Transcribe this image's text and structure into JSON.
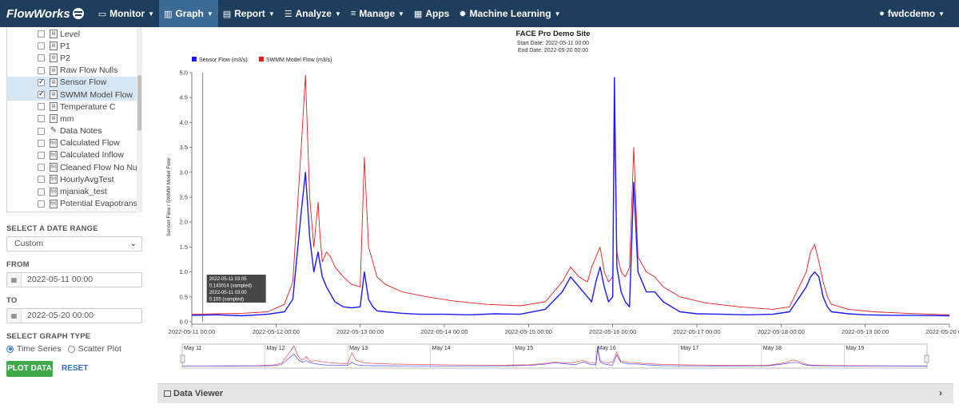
{
  "nav": {
    "brand": "FlowWorks",
    "items": [
      {
        "label": "Monitor",
        "icon": "monitor-icon"
      },
      {
        "label": "Graph",
        "icon": "bar-chart-icon",
        "active": true
      },
      {
        "label": "Report",
        "icon": "report-icon"
      },
      {
        "label": "Analyze",
        "icon": "list-icon"
      },
      {
        "label": "Manage",
        "icon": "sliders-icon"
      },
      {
        "label": "Apps",
        "icon": "grid-icon"
      },
      {
        "label": "Machine Learning",
        "icon": "gears-icon"
      }
    ],
    "user": "fwdcdemo"
  },
  "sidebar": {
    "tree": [
      {
        "label": "Level",
        "checked": false,
        "icon": "table-icon"
      },
      {
        "label": "P1",
        "checked": false,
        "icon": "table-icon"
      },
      {
        "label": "P2",
        "checked": false,
        "icon": "table-icon"
      },
      {
        "label": "Raw Flow Nulls",
        "checked": false,
        "icon": "table-icon"
      },
      {
        "label": "Sensor Flow",
        "checked": true,
        "icon": "table-icon"
      },
      {
        "label": "SWMM Model Flow",
        "checked": true,
        "icon": "table-icon"
      },
      {
        "label": "Temperature C",
        "checked": false,
        "icon": "table-icon"
      },
      {
        "label": "mm",
        "checked": false,
        "icon": "table-edit-icon"
      },
      {
        "label": "Data Notes",
        "checked": false,
        "icon": "pencil-icon"
      },
      {
        "label": "Calculated Flow",
        "checked": false,
        "icon": "formula-icon"
      },
      {
        "label": "Calculated Inflow",
        "checked": false,
        "icon": "formula-icon"
      },
      {
        "label": "Cleaned Flow No Nulls",
        "checked": false,
        "icon": "formula-icon"
      },
      {
        "label": "HourlyAvgTest",
        "checked": false,
        "icon": "formula-icon"
      },
      {
        "label": "mjaniak_test",
        "checked": false,
        "icon": "formula-icon"
      },
      {
        "label": "Potential Evapotranspir",
        "checked": false,
        "icon": "formula-icon"
      }
    ],
    "date_range_label": "SELECT A DATE RANGE",
    "date_range_value": "Custom",
    "from_label": "FROM",
    "from_value": "2022-05-11 00:00",
    "to_label": "TO",
    "to_value": "2022-05-20 00:00",
    "graph_type_label": "SELECT GRAPH TYPE",
    "graph_type_options": [
      "Time Series",
      "Scatter Plot"
    ],
    "graph_type_selected": "Time Series",
    "plot_button": "PLOT DATA",
    "reset_button": "RESET"
  },
  "data_viewer_label": "Data Viewer",
  "chart_data": {
    "type": "line",
    "title": "FACE Pro Demo Site",
    "subtitle_start": "Start Date: 2022-05-11 00:00",
    "subtitle_end": "End Date: 2022-05-20 00:00",
    "ylabel": "Sensor Flow / SWMM Model Flow",
    "xlabel": "",
    "ylim": [
      0,
      5.0
    ],
    "yticks": [
      "0.0",
      "0.5",
      "1.0",
      "1.5",
      "2.0",
      "2.5",
      "3.0",
      "3.5",
      "4.0",
      "4.5",
      "5.0"
    ],
    "xlim": [
      0,
      9
    ],
    "xticks": [
      "2022-05-11 00:00",
      "2022-05-12 00:00",
      "2022-05-13 00:00",
      "2022-05-14 00:00",
      "2022-05-15 00:00",
      "2022-05-16 00:00",
      "2022-05-17 00:00",
      "2022-05-18 00:00",
      "2022-05-19 00:00",
      "2022-05-20 00:00"
    ],
    "navigator_ticks": [
      "May 11",
      "May 12",
      "May 13",
      "May 14",
      "May 15",
      "May 16",
      "May 17",
      "May 18",
      "May 19"
    ],
    "grid": false,
    "legend": "top-left",
    "series": [
      {
        "name": "Sensor Flow (m3/s)",
        "color": "#1a1aff",
        "x": [
          0,
          0.3,
          0.6,
          0.9,
          1.1,
          1.2,
          1.3,
          1.35,
          1.4,
          1.45,
          1.5,
          1.52,
          1.55,
          1.6,
          1.65,
          1.7,
          1.75,
          1.8,
          1.9,
          2.0,
          2.05,
          2.1,
          2.15,
          2.2,
          2.3,
          2.5,
          2.7,
          3.0,
          3.3,
          3.6,
          3.9,
          4.2,
          4.4,
          4.5,
          4.6,
          4.7,
          4.75,
          4.8,
          4.85,
          4.9,
          4.95,
          5.0,
          5.02,
          5.05,
          5.1,
          5.15,
          5.2,
          5.25,
          5.3,
          5.4,
          5.5,
          5.6,
          5.8,
          6.0,
          6.3,
          6.6,
          6.9,
          7.1,
          7.3,
          7.35,
          7.4,
          7.45,
          7.5,
          7.55,
          7.6,
          7.8,
          8.0,
          8.3,
          8.6,
          9.0
        ],
        "values": [
          0.13,
          0.14,
          0.12,
          0.15,
          0.2,
          0.45,
          2.2,
          3.0,
          1.7,
          1.0,
          1.4,
          1.2,
          0.9,
          0.7,
          0.55,
          0.4,
          0.35,
          0.3,
          0.28,
          0.3,
          1.0,
          0.45,
          0.3,
          0.22,
          0.2,
          0.17,
          0.15,
          0.15,
          0.14,
          0.16,
          0.15,
          0.25,
          0.6,
          0.9,
          0.7,
          0.5,
          0.4,
          0.8,
          1.1,
          0.7,
          0.4,
          0.5,
          4.9,
          1.1,
          0.6,
          0.4,
          0.3,
          2.8,
          1.0,
          0.6,
          0.6,
          0.4,
          0.2,
          0.16,
          0.15,
          0.14,
          0.15,
          0.2,
          0.7,
          0.9,
          1.0,
          0.9,
          0.5,
          0.3,
          0.2,
          0.16,
          0.14,
          0.13,
          0.13,
          0.12
        ]
      },
      {
        "name": "SWMM Model Flow (m3/s)",
        "color": "#ee1c1c",
        "x": [
          0,
          0.3,
          0.6,
          0.9,
          1.1,
          1.2,
          1.3,
          1.35,
          1.4,
          1.45,
          1.5,
          1.52,
          1.55,
          1.6,
          1.65,
          1.7,
          1.8,
          1.9,
          2.0,
          2.05,
          2.1,
          2.15,
          2.2,
          2.3,
          2.5,
          2.8,
          3.1,
          3.5,
          3.9,
          4.2,
          4.4,
          4.5,
          4.6,
          4.7,
          4.75,
          4.8,
          4.85,
          4.9,
          4.95,
          5.0,
          5.02,
          5.05,
          5.1,
          5.15,
          5.2,
          5.25,
          5.3,
          5.4,
          5.5,
          5.6,
          5.8,
          6.1,
          6.5,
          6.9,
          7.1,
          7.3,
          7.35,
          7.4,
          7.45,
          7.5,
          7.55,
          7.6,
          7.8,
          8.1,
          8.5,
          9.0
        ],
        "values": [
          0.15,
          0.16,
          0.17,
          0.2,
          0.35,
          0.8,
          3.5,
          4.95,
          2.5,
          1.5,
          2.4,
          1.8,
          1.2,
          1.4,
          1.3,
          1.1,
          0.9,
          0.75,
          0.7,
          3.3,
          1.5,
          1.2,
          0.9,
          0.75,
          0.6,
          0.5,
          0.42,
          0.35,
          0.32,
          0.4,
          0.8,
          1.1,
          0.9,
          0.8,
          1.1,
          1.3,
          1.5,
          1.0,
          0.8,
          0.9,
          4.0,
          1.4,
          1.0,
          0.9,
          1.1,
          3.5,
          1.3,
          1.0,
          0.9,
          0.7,
          0.5,
          0.38,
          0.3,
          0.25,
          0.3,
          1.0,
          1.4,
          1.55,
          1.2,
          0.8,
          0.5,
          0.35,
          0.25,
          0.2,
          0.17,
          0.14
        ]
      }
    ],
    "tooltip": {
      "lines": [
        "2022-05-11 03:05",
        "0.143014   (sampled)",
        "2022-05-11 03:00",
        "0.155   (sampled)"
      ]
    }
  }
}
